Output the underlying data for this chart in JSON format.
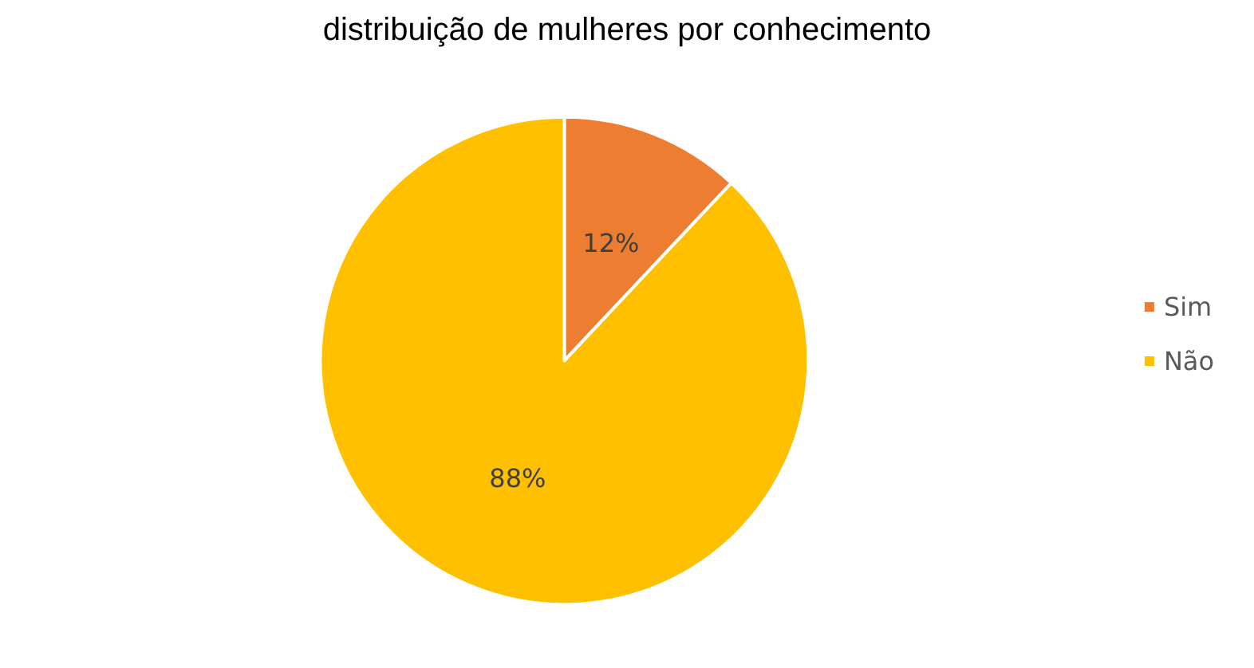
{
  "chart_data": {
    "type": "pie",
    "title": "distribuição de mulheres por conhecimento",
    "categories": [
      "Sim",
      "Não"
    ],
    "values": [
      12,
      88
    ],
    "colors": [
      "#ed7d31",
      "#ffc000"
    ],
    "value_labels": [
      "12%",
      "88%"
    ],
    "legend": "right"
  }
}
